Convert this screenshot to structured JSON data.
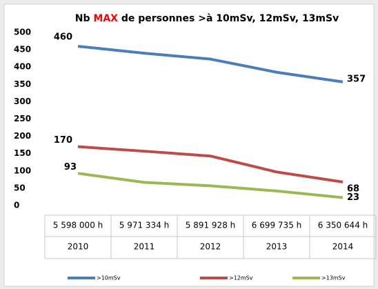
{
  "chart_data": {
    "type": "line",
    "title": {
      "prefix": "Nb",
      "highlight": "MAX",
      "suffix": "de personnes >à 10mSv, 12mSv, 13mSv"
    },
    "categories": [
      "2010",
      "2011",
      "2012",
      "2013",
      "2014"
    ],
    "hours": [
      "5 598 000 h",
      "5 971 334 h",
      "5 891 928 h",
      "6 699 735 h",
      "6 350 644 h"
    ],
    "series": [
      {
        "name": ">10mSv",
        "color": "#4a7ebb",
        "values": [
          460,
          440,
          423,
          385,
          357
        ]
      },
      {
        "name": ">12mSv",
        "color": "#be4b48",
        "values": [
          170,
          157,
          143,
          97,
          68
        ]
      },
      {
        "name": ">13mSv",
        "color": "#98b954",
        "values": [
          93,
          67,
          57,
          42,
          23
        ]
      }
    ],
    "labeled_points": [
      0,
      4
    ],
    "ylim": [
      0,
      500
    ],
    "yticks": [
      0,
      50,
      100,
      150,
      200,
      250,
      300,
      350,
      400,
      450,
      500
    ],
    "grid": false,
    "legend": "bottom",
    "highlight_color": "#ff0000"
  }
}
